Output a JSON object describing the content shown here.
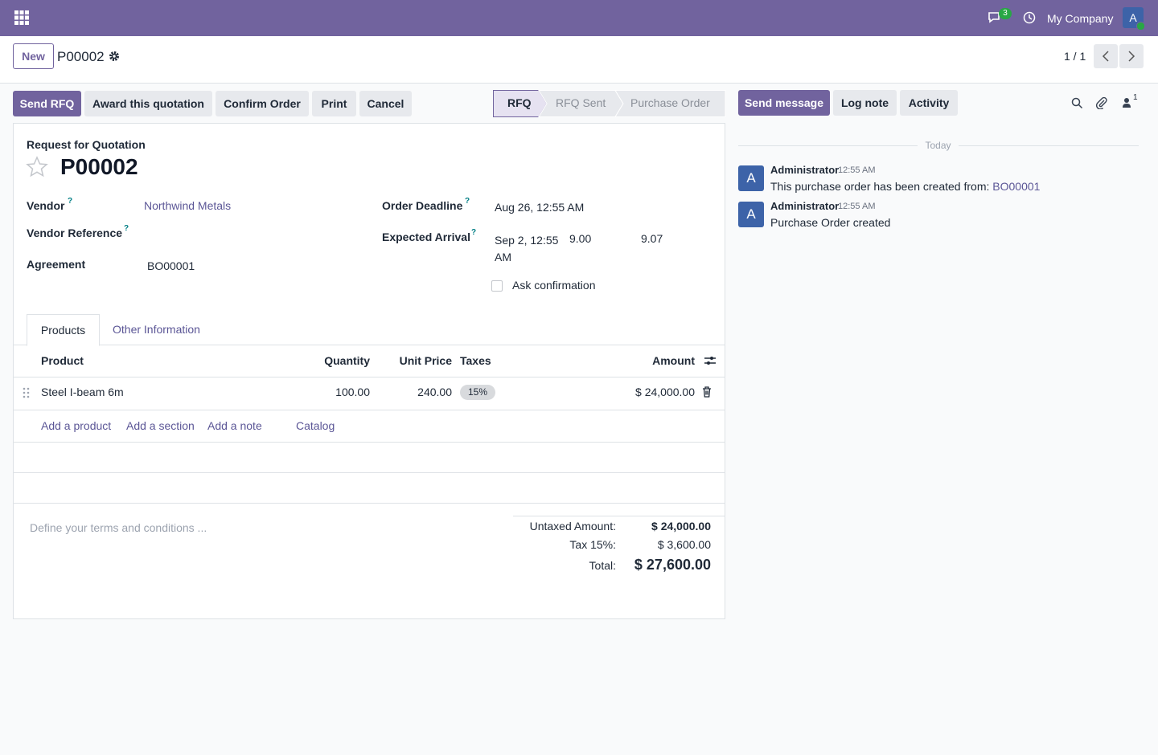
{
  "navbar": {
    "message_count": "3",
    "company": "My Company",
    "avatar": "A"
  },
  "control_panel": {
    "new_button": "New",
    "breadcrumb": "P00002",
    "pager": "1 / 1"
  },
  "action_buttons": [
    "Send RFQ",
    "Award this quotation",
    "Confirm Order",
    "Print",
    "Cancel"
  ],
  "statusbar": [
    "RFQ",
    "RFQ Sent",
    "Purchase Order"
  ],
  "form": {
    "subtitle": "Request for Quotation",
    "title": "P00002",
    "left_fields": [
      {
        "label": "Vendor",
        "help": "?",
        "value": "Northwind Metals"
      },
      {
        "label": "Vendor Reference",
        "help": "?"
      },
      {
        "label": "Agreement",
        "value": "BO00001"
      }
    ],
    "right_fields": [
      {
        "label": "Order Deadline",
        "help": "?",
        "value": "Aug 26, 12:55 AM"
      },
      {
        "label": "Expected Arrival",
        "help": "?",
        "value": "Sep 2, 12:55 AM",
        "extra": [
          "9.00",
          "9.07"
        ]
      }
    ],
    "checkbox": "Ask confirmation",
    "tabs": [
      "Products",
      "Other Information"
    ],
    "table": {
      "headers": [
        "Product",
        "Quantity",
        "Unit Price",
        "Taxes",
        "Amount"
      ],
      "rows": [
        [
          "Steel I-beam 6m",
          "100.00",
          "240.00",
          "15%",
          "$ 24,000.00"
        ]
      ],
      "add_links": [
        "Add a product",
        "Add a section",
        "Add a note",
        "Catalog"
      ]
    },
    "terms_placeholder": "Define your terms and conditions ...",
    "totals": [
      [
        "Untaxed Amount:",
        "$ 24,000.00"
      ],
      [
        "Tax 15%:",
        "$ 3,600.00"
      ],
      [
        "Total:",
        "$ 27,600.00"
      ]
    ]
  },
  "chatter": {
    "buttons": [
      "Send message",
      "Log note",
      "Activity"
    ],
    "follower_count": "1",
    "date_separator": "Today",
    "messages": [
      {
        "avatar": "A",
        "author": "Administrator",
        "time": "12:55 AM",
        "body": "This purchase order has been created from:",
        "link": "BO00001"
      },
      {
        "avatar": "A",
        "author": "Administrator",
        "time": "12:55 AM",
        "body": "Purchase Order created"
      }
    ]
  }
}
